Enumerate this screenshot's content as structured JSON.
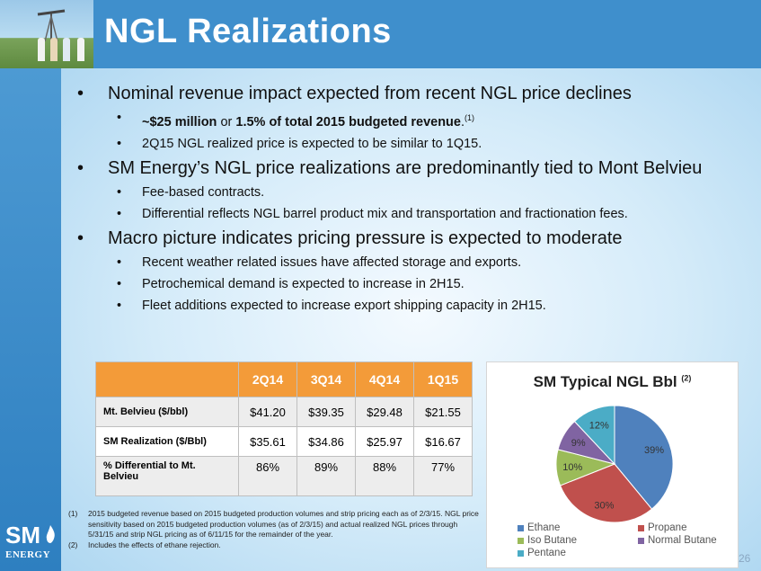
{
  "header": {
    "title": "NGL Realizations"
  },
  "bullets": [
    {
      "text": "Nominal revenue impact expected from recent NGL price declines",
      "subs": [
        {
          "bold1": "~$25 million",
          "mid": " or ",
          "bold2": "1.5% of total 2015 budgeted revenue",
          "end": ".",
          "sup": "(1)"
        },
        {
          "text": "2Q15 NGL realized price is expected to be similar to 1Q15."
        }
      ]
    },
    {
      "text": "SM Energy’s NGL price realizations are predominantly tied to Mont Belvieu",
      "subs": [
        {
          "text": "Fee-based contracts."
        },
        {
          "text": "Differential reflects NGL barrel product mix and transportation and fractionation fees."
        }
      ]
    },
    {
      "text": "Macro picture indicates pricing pressure is expected to moderate",
      "subs": [
        {
          "text": "Recent weather related issues have affected storage and exports."
        },
        {
          "text": "Petrochemical demand is expected to increase in 2H15."
        },
        {
          "text": "Fleet additions expected to increase export shipping capacity in 2H15."
        }
      ]
    }
  ],
  "table": {
    "headers": [
      "2Q14",
      "3Q14",
      "4Q14",
      "1Q15"
    ],
    "rows": [
      {
        "label": "Mt. Belvieu ($/bbl)",
        "values": [
          "$41.20",
          "$39.35",
          "$29.48",
          "$21.55"
        ]
      },
      {
        "label": "SM Realization ($/Bbl)",
        "values": [
          "$35.61",
          "$34.86",
          "$25.97",
          "$16.67"
        ]
      },
      {
        "label": "% Differential to Mt. Belvieu",
        "values": [
          "86%",
          "89%",
          "88%",
          "77%"
        ]
      }
    ]
  },
  "chart_data": {
    "type": "pie",
    "title": "SM Typical NGL Bbl",
    "title_sup": "(2)",
    "categories": [
      "Ethane",
      "Propane",
      "Iso Butane",
      "Normal Butane",
      "Pentane"
    ],
    "values": [
      39,
      30,
      10,
      9,
      12
    ],
    "labels": [
      "39%",
      "30%",
      "10%",
      "9%",
      "12%"
    ],
    "colors": [
      "#4f81bd",
      "#c0504d",
      "#9bbb59",
      "#8064a2",
      "#4bacc6"
    ],
    "legend_position": "bottom"
  },
  "footnotes": [
    {
      "num": "(1)",
      "text": "2015 budgeted revenue based on 2015 budgeted production volumes and strip pricing each as of 2/3/15. NGL price sensitivity based on 2015 budgeted production volumes (as of 2/3/15) and actual realized NGL prices through 5/31/15 and strip NGL pricing as of 6/11/15 for the remainder of the year."
    },
    {
      "num": "(2)",
      "text": "Includes the effects of ethane rejection."
    }
  ],
  "logo": {
    "sm": "SM",
    "energy": "ENERGY"
  },
  "page_number": "26",
  "colors": {
    "header": "#3f8fcc",
    "table_header": "#f39b39"
  }
}
